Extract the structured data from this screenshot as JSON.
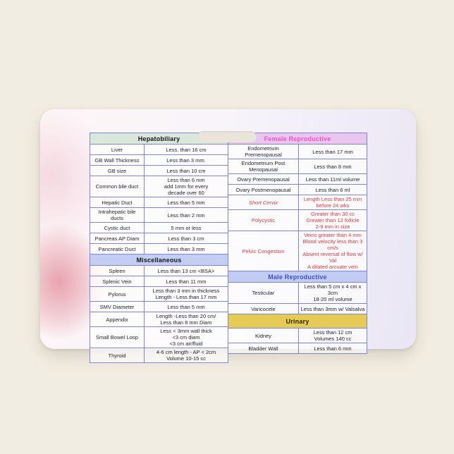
{
  "colors": {
    "page_background": "#f2ede2",
    "card_lavender": "#e9e6f5",
    "card_pink_blob": "#dd8492",
    "table_border": "#7d86d6",
    "body_text": "#23232e",
    "alert_red_text": "#d23b3f",
    "badge_slot": "#eae4da",
    "hepatobiliary_header_bg": "#d9e8da",
    "miscellaneous_header_bg": "#c4cdf3",
    "female_header_bg": "#e9c6ee",
    "female_header_text": "#ee52c5",
    "male_header_bg": "#c2ccf3",
    "male_header_text": "#3c50c8",
    "urinary_header_bg": "#e5cb55"
  },
  "tables": {
    "left": {
      "sections": [
        {
          "title": "Hepatobiliary",
          "theme": "mint",
          "rows": [
            {
              "label": "Liver",
              "value": "Less. than 16 cm"
            },
            {
              "label": "GB Wall Thickness",
              "value": "Less than 3 mm."
            },
            {
              "label": "GB size",
              "value": "Less than 10 cm"
            },
            {
              "label": "Common bile duct",
              "value": "Less than 6 mm\nadd 1mm for every\ndecade over 60"
            },
            {
              "label": "Hepatic Duct",
              "value": "Less than 5 mm"
            },
            {
              "label": "Intrahepatic bile ducts",
              "value": "Less than 2 mm"
            },
            {
              "label": "Cystic duct",
              "value": "5 mm or less"
            },
            {
              "label": "Pancreas AP Diam",
              "value": "Less than 3 cm"
            },
            {
              "label": "Pancreatic Duct",
              "value": "Less than 3 mm"
            }
          ]
        },
        {
          "title": "Miscellaneous",
          "theme": "periwinkle",
          "rows": [
            {
              "label": "Spleen",
              "value": "Less than 13 cm <BSA>"
            },
            {
              "label": "Splenic Vein",
              "value": "Less than 11 mm"
            },
            {
              "label": "Pylorus",
              "value": "Less than 3 mm in thickness\nLength - Less than 17 mm"
            },
            {
              "label": "SMV Diameter",
              "value": "Less than 5 mm"
            },
            {
              "label": "Appendix",
              "value": "Length -Less than 20 cm/\nLess than 8 mm Diam"
            },
            {
              "label": "Small Bowel Loop",
              "value": "Less < 3mm wall thick\n<3 cm diam\n<3 cm air/fluid"
            },
            {
              "label": "Thyroid",
              "value": "4-6 cm length - AP < 2cm\nVolume 10-15 cc"
            }
          ]
        }
      ]
    },
    "right": {
      "sections": [
        {
          "title": "Female Reproductive",
          "theme": "orchid",
          "rows": [
            {
              "label": "Endometrium\nPremenopausal",
              "value": "Less than 17 mm"
            },
            {
              "label": "Endometrium Post Menopausal",
              "value": "Less than 8 mm"
            },
            {
              "label": "Ovary Premenopausal",
              "value": "Less than 11ml volume"
            },
            {
              "label": "Ovary Postmenopausal",
              "value": "Less than 6 ml"
            },
            {
              "label": "Short Cervix",
              "value": "Length Less than 25 mm\nbefore 24 wks",
              "red": true,
              "italic": true
            },
            {
              "label": "Polycystic",
              "value": "Greater than 30 cc\nGreater than 12 follicle\n2-9 mm in size",
              "red": true
            },
            {
              "label": "Pelvic Congestion",
              "value": "Veins greater than 4 mm\nBlood velocity less than 3 cm/s\nAbsent reversal of flow w/ Val\nA dilated arcuate vein",
              "red": true
            }
          ]
        },
        {
          "title": "Male Reproductive",
          "theme": "male",
          "rows": [
            {
              "label": "Testicular",
              "value": "Less than 5 cm x 4 cm x 3cm\n18-20 ml volume"
            },
            {
              "label": "Varicocele",
              "value": "Less than 3mm w/ Valsalva"
            }
          ]
        },
        {
          "title": "Urinary",
          "theme": "gold",
          "rows": [
            {
              "label": "Kidney",
              "value": "Less than 12 cm\nVolumes 140 cc"
            },
            {
              "label": "Bladder Wall",
              "value": "Less than 6 mm"
            }
          ]
        }
      ]
    }
  }
}
